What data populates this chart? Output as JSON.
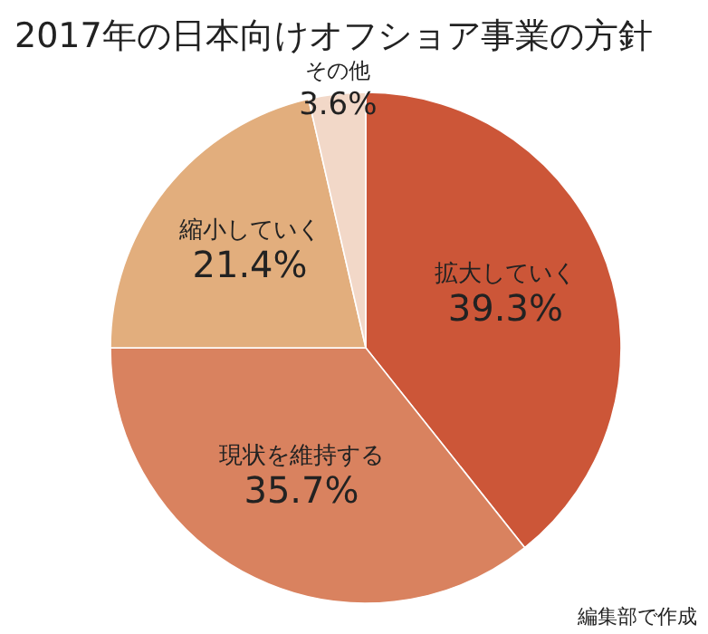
{
  "chart_data": {
    "type": "pie",
    "title": "2017年の日本向けオフショア事業の方針",
    "categories": [
      "拡大していく",
      "現状を維持する",
      "縮小していく",
      "その他"
    ],
    "values": [
      39.3,
      35.7,
      21.4,
      3.6
    ],
    "value_labels": [
      "39.3%",
      "35.7%",
      "21.4%",
      "3.6%"
    ],
    "colors": [
      "#cc5638",
      "#d9825f",
      "#e2ae7d",
      "#f2d8c8"
    ],
    "annotations": [
      "編集部で作成"
    ]
  }
}
